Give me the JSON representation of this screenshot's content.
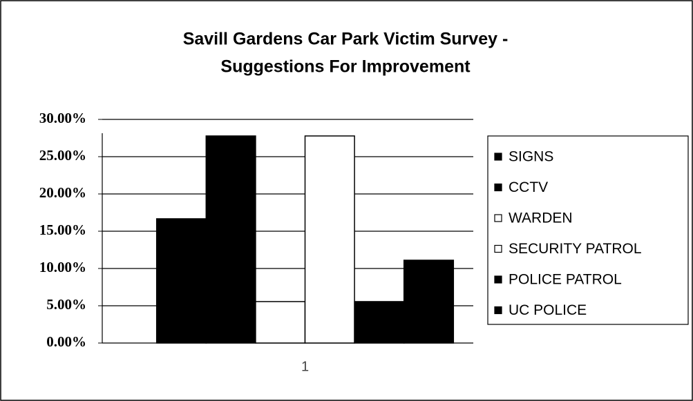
{
  "chart_data": {
    "type": "bar",
    "title": [
      "Savill Gardens Car Park Victim Survey -",
      "Suggestions For Improvement"
    ],
    "categories": [
      "1"
    ],
    "series": [
      {
        "name": "SIGNS",
        "color": "#000000",
        "values": [
          16.67
        ]
      },
      {
        "name": "CCTV",
        "color": "#000000",
        "values": [
          27.78
        ]
      },
      {
        "name": "WARDEN",
        "color": "#ffffff",
        "values": [
          5.56
        ]
      },
      {
        "name": "SECURITY PATROL",
        "color": "#ffffff",
        "values": [
          27.78
        ]
      },
      {
        "name": "POLICE PATROL",
        "color": "#000000",
        "values": [
          5.56
        ]
      },
      {
        "name": "UC POLICE",
        "color": "#000000",
        "values": [
          11.11
        ]
      }
    ],
    "ylim": [
      0,
      30
    ],
    "yticks": [
      {
        "value": 0,
        "label": "0.00%"
      },
      {
        "value": 5,
        "label": "5.00%"
      },
      {
        "value": 10,
        "label": "10.00%"
      },
      {
        "value": 15,
        "label": "15.00%"
      },
      {
        "value": 20,
        "label": "20.00%"
      },
      {
        "value": 25,
        "label": "25.00%"
      },
      {
        "value": 30,
        "label": "30.00%"
      }
    ],
    "grid": true,
    "legend": "right"
  }
}
